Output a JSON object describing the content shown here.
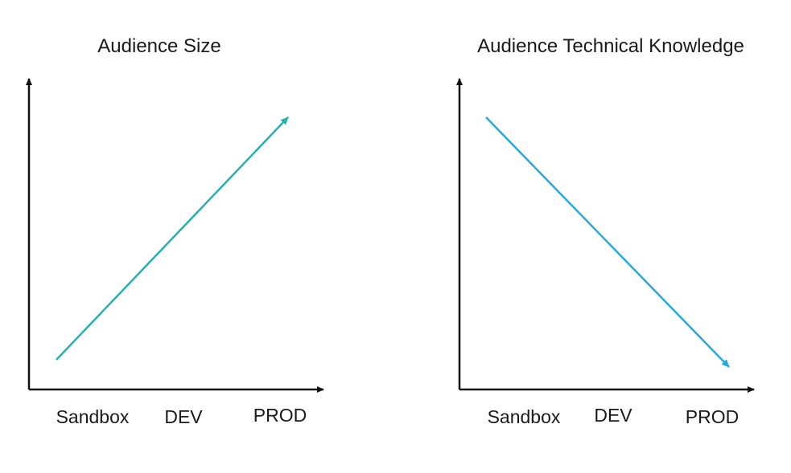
{
  "panels": [
    {
      "title": "Audience Size",
      "stages": [
        "Sandbox",
        "DEV",
        "PROD"
      ],
      "trend": "increasing"
    },
    {
      "title": "Audience Technical Knowledge",
      "stages": [
        "Sandbox",
        "DEV",
        "PROD"
      ],
      "trend": "decreasing"
    }
  ],
  "colors": {
    "trend_arrow_left": "#2ab0ac",
    "trend_arrow_right": "#2aa8d8",
    "axis": "#111111",
    "text": "#1a1a1a"
  }
}
